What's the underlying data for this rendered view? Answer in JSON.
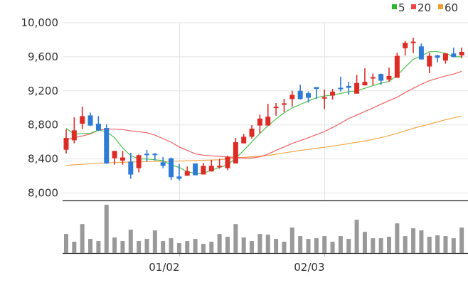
{
  "chart_data": {
    "type": "candlestick",
    "title": "",
    "ylim": [
      8000,
      10000
    ],
    "yticks": [
      "10,000",
      "9,600",
      "9,200",
      "8,800",
      "8,400",
      "8,000"
    ],
    "ytick_values": [
      10000,
      9600,
      9200,
      8800,
      8400,
      8000
    ],
    "xticks": [
      {
        "label": "01/02",
        "index": 14
      },
      {
        "label": "02/03",
        "index": 32
      }
    ],
    "legend": {
      "placement": "top-right",
      "items": [
        {
          "label": "5",
          "color": "#2db82d"
        },
        {
          "label": "20",
          "color": "#ee4444"
        },
        {
          "label": "60",
          "color": "#f39a2b"
        }
      ]
    },
    "colors": {
      "up": "#dd2c26",
      "down": "#2e7bd6",
      "volume": "#999999",
      "grid": "#e3e3e3"
    },
    "ohlc": [
      [
        8508,
        8747,
        8464,
        8647
      ],
      [
        8619,
        8889,
        8583,
        8736
      ],
      [
        8814,
        9014,
        8750,
        8903
      ],
      [
        8911,
        8944,
        8786,
        8792
      ],
      [
        8814,
        8903,
        8728,
        8736
      ],
      [
        8764,
        8806,
        8342,
        8347
      ],
      [
        8408,
        8494,
        8333,
        8494
      ],
      [
        8381,
        8494,
        8333,
        8417
      ],
      [
        8369,
        8472,
        8167,
        8217
      ],
      [
        8292,
        8453,
        8242,
        8444
      ],
      [
        8461,
        8506,
        8367,
        8450
      ],
      [
        8461,
        8467,
        8381,
        8453
      ],
      [
        8361,
        8422,
        8292,
        8319
      ],
      [
        8408,
        8417,
        8153,
        8186
      ],
      [
        8194,
        8339,
        8147,
        8167
      ],
      [
        8203,
        8311,
        8203,
        8256
      ],
      [
        8347,
        8347,
        8208,
        8208
      ],
      [
        8217,
        8353,
        8217,
        8319
      ],
      [
        8253,
        8389,
        8253,
        8319
      ],
      [
        8306,
        8403,
        8286,
        8319
      ],
      [
        8292,
        8439,
        8269,
        8422
      ],
      [
        8347,
        8647,
        8347,
        8597
      ],
      [
        8583,
        8694,
        8583,
        8661
      ],
      [
        8661,
        8797,
        8639,
        8756
      ],
      [
        8792,
        8922,
        8700,
        8875
      ],
      [
        8792,
        9047,
        8792,
        8897
      ],
      [
        9000,
        9056,
        8908,
        9014
      ],
      [
        9039,
        9106,
        8950,
        9053
      ],
      [
        9103,
        9200,
        9014,
        9153
      ],
      [
        9200,
        9272,
        9097,
        9103
      ],
      [
        9172,
        9194,
        9061,
        9119
      ],
      [
        9244,
        9244,
        9103,
        9222
      ],
      [
        9111,
        9214,
        8986,
        9125
      ],
      [
        9144,
        9222,
        9097,
        9189
      ],
      [
        9236,
        9367,
        9192,
        9219
      ],
      [
        9258,
        9306,
        9153,
        9236
      ],
      [
        9167,
        9389,
        9167,
        9292
      ],
      [
        9264,
        9464,
        9264,
        9306
      ],
      [
        9347,
        9403,
        9264,
        9361
      ],
      [
        9397,
        9403,
        9269,
        9319
      ],
      [
        9333,
        9472,
        9306,
        9375
      ],
      [
        9353,
        9647,
        9353,
        9611
      ],
      [
        9700,
        9786,
        9617,
        9764
      ],
      [
        9764,
        9825,
        9644,
        9778
      ],
      [
        9722,
        9756,
        9569,
        9569
      ],
      [
        9486,
        9647,
        9408,
        9611
      ],
      [
        9617,
        9625,
        9536,
        9589
      ],
      [
        9556,
        9644,
        9519,
        9639
      ],
      [
        9639,
        9708,
        9597,
        9597
      ],
      [
        9617,
        9708,
        9583,
        9658
      ]
    ],
    "ma5": [
      8760,
      8690,
      8700,
      8700,
      8740,
      8720,
      8650,
      8530,
      8440,
      8400,
      8400,
      8390,
      8380,
      8330,
      8300,
      8250,
      8230,
      8230,
      8270,
      8300,
      8330,
      8410,
      8500,
      8600,
      8700,
      8790,
      8870,
      8940,
      9000,
      9040,
      9080,
      9120,
      9140,
      9150,
      9170,
      9190,
      9200,
      9230,
      9260,
      9290,
      9310,
      9380,
      9480,
      9570,
      9610,
      9660,
      9660,
      9640,
      9600,
      9600
    ],
    "ma20": [
      8625,
      8650,
      8670,
      8694,
      8740,
      8750,
      8750,
      8745,
      8730,
      8720,
      8708,
      8680,
      8639,
      8597,
      8540,
      8500,
      8460,
      8444,
      8436,
      8430,
      8425,
      8417,
      8411,
      8411,
      8425,
      8456,
      8500,
      8540,
      8583,
      8615,
      8650,
      8686,
      8722,
      8770,
      8819,
      8875,
      8915,
      8958,
      9000,
      9042,
      9085,
      9125,
      9180,
      9230,
      9278,
      9320,
      9347,
      9375,
      9397,
      9430
    ],
    "ma60": [
      8325,
      8331,
      8337,
      8344,
      8350,
      8353,
      8357,
      8360,
      8364,
      8367,
      8369,
      8370,
      8372,
      8374,
      8375,
      8378,
      8381,
      8384,
      8387,
      8390,
      8400,
      8410,
      8418,
      8425,
      8433,
      8440,
      8455,
      8470,
      8485,
      8500,
      8512,
      8525,
      8537,
      8550,
      8565,
      8580,
      8595,
      8610,
      8630,
      8650,
      8675,
      8700,
      8730,
      8760,
      8785,
      8810,
      8835,
      8860,
      8883,
      8905
    ],
    "volume_relative": [
      81,
      48,
      123,
      60,
      51,
      205,
      66,
      51,
      99,
      51,
      60,
      96,
      51,
      63,
      42,
      51,
      60,
      39,
      48,
      81,
      69,
      123,
      66,
      51,
      81,
      78,
      60,
      48,
      108,
      72,
      60,
      63,
      72,
      48,
      72,
      60,
      141,
      90,
      63,
      63,
      69,
      126,
      72,
      105,
      96,
      69,
      75,
      72,
      63,
      108
    ]
  }
}
